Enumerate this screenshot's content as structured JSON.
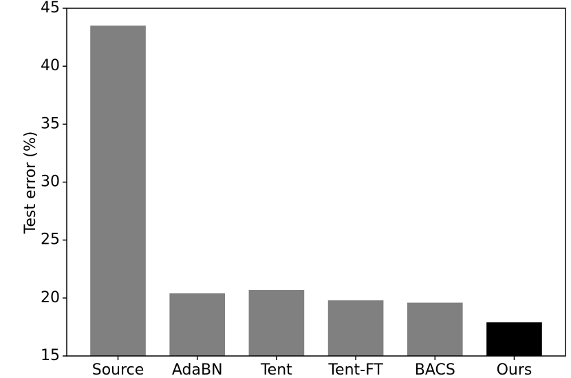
{
  "chart_data": {
    "type": "bar",
    "y_label": "Test error (%)",
    "categories": [
      "Source",
      "AdaBN",
      "Tent",
      "Tent-FT",
      "BACS",
      "Ours"
    ],
    "values": [
      43.5,
      20.4,
      20.7,
      19.8,
      19.6,
      17.9
    ],
    "colors": [
      "#808080",
      "#808080",
      "#808080",
      "#808080",
      "#808080",
      "#000000"
    ],
    "ylim": [
      15,
      45
    ],
    "yticks": [
      15,
      20,
      25,
      30,
      35,
      40,
      45
    ],
    "grid": false
  }
}
